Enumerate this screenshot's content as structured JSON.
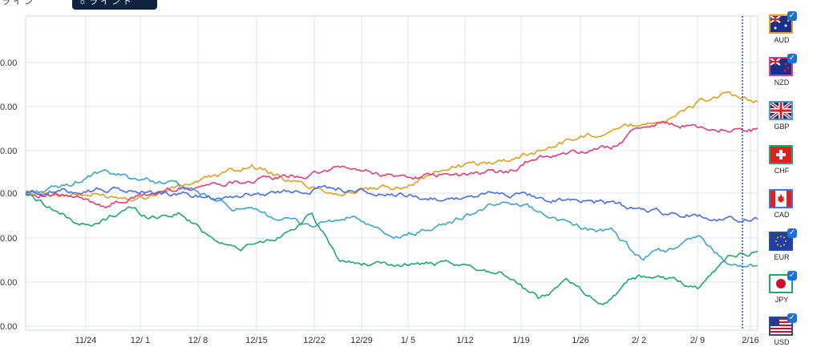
{
  "tabs": [
    {
      "label": "ラ イ ン"
    },
    {
      "label": "☼ ラ イ ン ド"
    }
  ],
  "chart_data": {
    "type": "line",
    "x_labels": [
      "11/24",
      "12/ 1",
      "12/ 8",
      "12/15",
      "12/22",
      "12/29",
      "1/ 5",
      "1/12",
      "1/19",
      "1/26",
      "2/ 2",
      "2/ 9",
      "2/16"
    ],
    "y_ticks": [
      "0.00",
      "0.00",
      "0.00",
      "0.00",
      "0.00",
      "0.00",
      "0.00"
    ],
    "grid": true,
    "legend_placement": "right",
    "series": [
      {
        "name": "AUD",
        "color": "#e0a020",
        "checked": true,
        "anchors": [
          [
            0,
            0.0
          ],
          [
            0.16,
            -0.2
          ],
          [
            0.31,
            1.4
          ],
          [
            0.36,
            0.6
          ],
          [
            0.43,
            0.0
          ],
          [
            0.51,
            0.3
          ],
          [
            0.58,
            1.3
          ],
          [
            0.65,
            1.6
          ],
          [
            0.7,
            2.1
          ],
          [
            0.74,
            2.6
          ],
          [
            0.8,
            3.2
          ],
          [
            0.85,
            3.5
          ],
          [
            0.89,
            3.9
          ],
          [
            0.92,
            4.5
          ],
          [
            0.95,
            4.9
          ],
          [
            0.97,
            4.7
          ],
          [
            1.0,
            4.6
          ]
        ]
      },
      {
        "name": "NZD",
        "color": "#e0407a",
        "checked": true,
        "anchors": [
          [
            0,
            0.0
          ],
          [
            0.06,
            -0.2
          ],
          [
            0.11,
            -0.6
          ],
          [
            0.2,
            0.2
          ],
          [
            0.29,
            0.6
          ],
          [
            0.39,
            0.9
          ],
          [
            0.43,
            1.3
          ],
          [
            0.51,
            0.8
          ],
          [
            0.6,
            0.9
          ],
          [
            0.66,
            1.1
          ],
          [
            0.7,
            1.8
          ],
          [
            0.75,
            2.0
          ],
          [
            0.8,
            2.3
          ],
          [
            0.84,
            3.3
          ],
          [
            0.87,
            3.5
          ],
          [
            0.92,
            3.3
          ],
          [
            0.96,
            3.2
          ],
          [
            1.0,
            3.2
          ]
        ]
      },
      {
        "name": "GBP",
        "color": "#3fa5c8",
        "checked": false,
        "anchors": [
          [
            0,
            0.0
          ],
          [
            0.05,
            0.3
          ],
          [
            0.1,
            1.0
          ],
          [
            0.2,
            0.5
          ],
          [
            0.28,
            -0.7
          ],
          [
            0.39,
            -1.6
          ],
          [
            0.45,
            -1.2
          ],
          [
            0.5,
            -2.3
          ],
          [
            0.57,
            -1.6
          ],
          [
            0.63,
            -0.7
          ],
          [
            0.67,
            -0.4
          ],
          [
            0.72,
            -1.2
          ],
          [
            0.77,
            -1.8
          ],
          [
            0.8,
            -1.9
          ],
          [
            0.84,
            -3.3
          ],
          [
            0.88,
            -2.8
          ],
          [
            0.92,
            -2.2
          ],
          [
            0.96,
            -3.5
          ],
          [
            1.0,
            -3.7
          ]
        ]
      },
      {
        "name": "CHF",
        "color": "#20a86a",
        "checked": false,
        "anchors": [
          [
            0,
            0.0
          ],
          [
            0.03,
            -0.6
          ],
          [
            0.06,
            -1.3
          ],
          [
            0.09,
            -1.7
          ],
          [
            0.14,
            -0.7
          ],
          [
            0.17,
            -1.2
          ],
          [
            0.21,
            -1.0
          ],
          [
            0.25,
            -2.1
          ],
          [
            0.29,
            -2.8
          ],
          [
            0.34,
            -2.3
          ],
          [
            0.39,
            -1.1
          ],
          [
            0.43,
            -3.4
          ],
          [
            0.49,
            -3.6
          ],
          [
            0.55,
            -3.5
          ],
          [
            0.6,
            -3.7
          ],
          [
            0.65,
            -3.9
          ],
          [
            0.7,
            -5.3
          ],
          [
            0.74,
            -4.3
          ],
          [
            0.79,
            -5.6
          ],
          [
            0.83,
            -4.1
          ],
          [
            0.88,
            -4.3
          ],
          [
            0.92,
            -4.8
          ],
          [
            0.96,
            -3.1
          ],
          [
            1.0,
            -3.0
          ]
        ]
      },
      {
        "name": "CAD",
        "color": "#4a6ee8",
        "checked": false,
        "anchors": [
          [
            0,
            0.0
          ],
          [
            0.1,
            0.2
          ],
          [
            0.18,
            0.0
          ],
          [
            0.26,
            -0.2
          ],
          [
            0.33,
            0.0
          ],
          [
            0.42,
            0.3
          ],
          [
            0.49,
            -0.1
          ],
          [
            0.58,
            -0.3
          ],
          [
            0.65,
            0.0
          ],
          [
            0.72,
            -0.3
          ],
          [
            0.79,
            -0.5
          ],
          [
            0.85,
            -0.9
          ],
          [
            0.89,
            -1.0
          ],
          [
            0.93,
            -1.2
          ],
          [
            0.97,
            -1.3
          ],
          [
            1.0,
            -1.3
          ]
        ]
      },
      {
        "name": "EUR",
        "color": "#2a4aa0",
        "checked": true,
        "anchors": []
      },
      {
        "name": "JPY",
        "color": "#e03030",
        "checked": true,
        "anchors": []
      },
      {
        "name": "USD",
        "color": "#2a4aa0",
        "checked": true,
        "anchors": []
      }
    ]
  }
}
